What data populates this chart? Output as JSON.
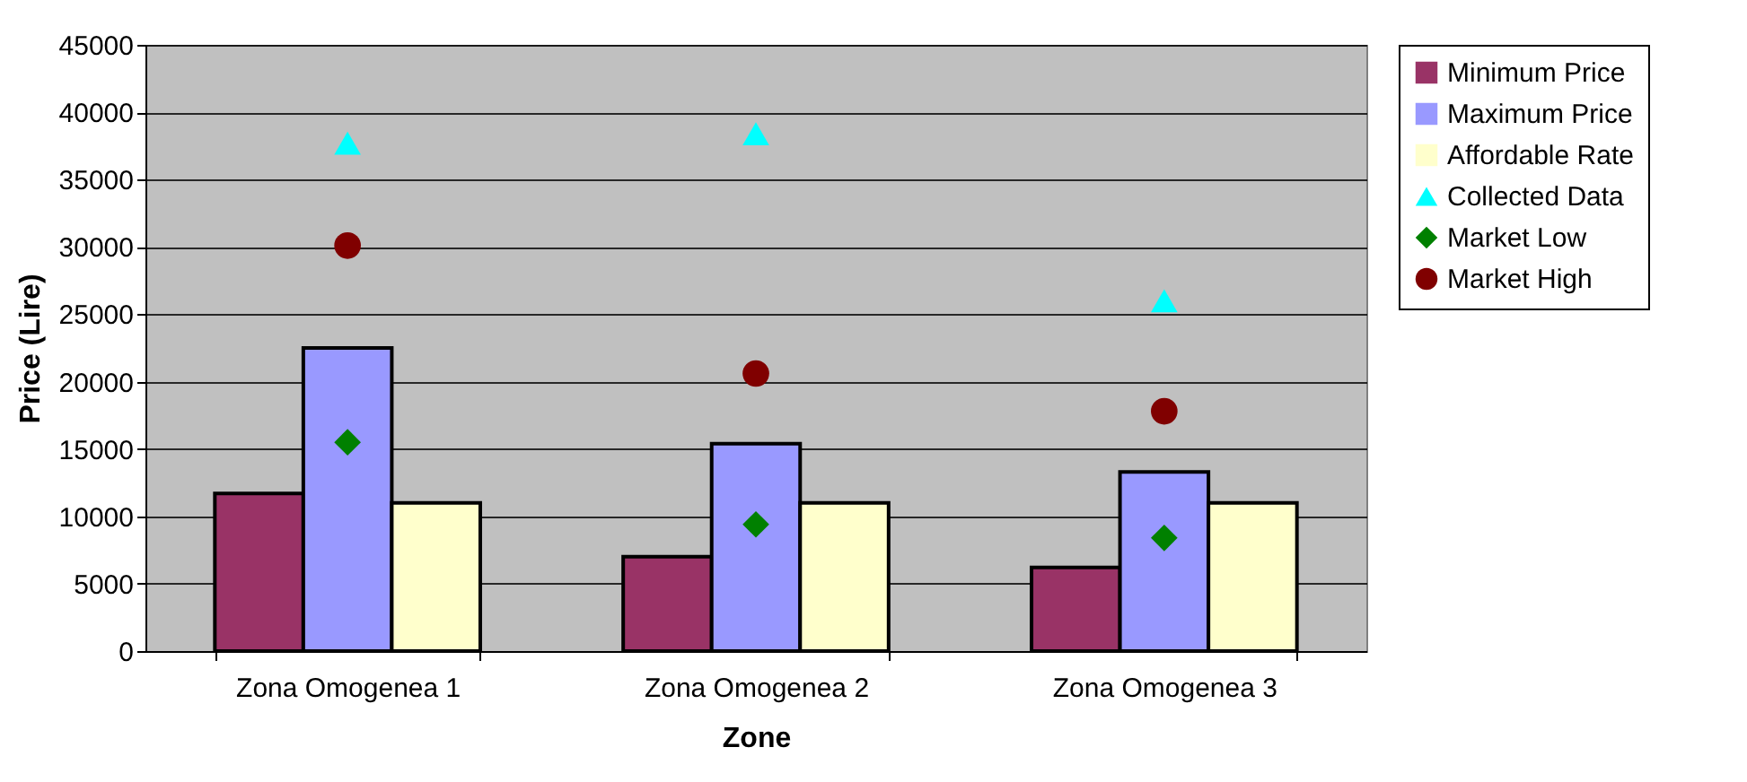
{
  "chart_data": {
    "type": "bar",
    "xlabel": "Zone",
    "ylabel": "Price (Lire)",
    "categories": [
      "Zona Omogenea 1",
      "Zona Omogenea 2",
      "Zona Omogenea 3"
    ],
    "ylim": [
      0,
      45000
    ],
    "yticks": [
      0,
      5000,
      10000,
      15000,
      20000,
      25000,
      30000,
      35000,
      40000,
      45000
    ],
    "grid": "y",
    "legend": "right",
    "series": [
      {
        "name": "Minimum Price",
        "color": "#993366",
        "values": [
          11700,
          7000,
          6200
        ]
      },
      {
        "name": "Maximum Price",
        "color": "#9999ff",
        "values": [
          22500,
          15400,
          13300
        ]
      },
      {
        "name": "Affordable Rate",
        "color": "#ffffcc",
        "values": [
          11000,
          11000,
          11000
        ]
      },
      {
        "name": "Collected Data",
        "type": "scatter",
        "marker": "triangle",
        "color": "#00ffff",
        "values": [
          37700,
          38400,
          26000
        ]
      },
      {
        "name": "Market Low",
        "type": "scatter",
        "marker": "diamond",
        "color": "#008000",
        "values": [
          15500,
          9400,
          8400
        ]
      },
      {
        "name": "Market High",
        "type": "scatter",
        "marker": "circle",
        "color": "#800000",
        "values": [
          30100,
          20600,
          17800
        ]
      }
    ]
  }
}
